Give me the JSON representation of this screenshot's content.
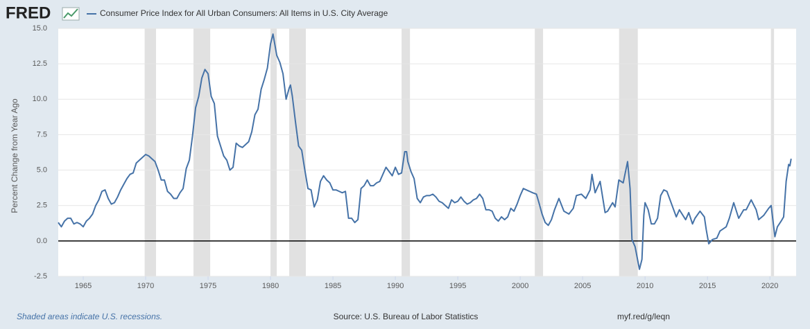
{
  "logo": "FRED",
  "footer": {
    "note": "Shaded areas indicate U.S. recessions.",
    "source": "Source: U.S. Bureau of Labor Statistics",
    "link": "myf.red/g/leqn"
  },
  "chart_data": {
    "type": "line",
    "y_label": "Percent Change from Year Ago",
    "x": [
      1963.0,
      1963.25,
      1963.5,
      1963.75,
      1964.0,
      1964.25,
      1964.5,
      1964.75,
      1965.0,
      1965.25,
      1965.5,
      1965.75,
      1966.0,
      1966.25,
      1966.5,
      1966.75,
      1967.0,
      1967.25,
      1967.5,
      1967.75,
      1968.0,
      1968.25,
      1968.5,
      1968.75,
      1969.0,
      1969.25,
      1969.5,
      1969.75,
      1970.0,
      1970.25,
      1970.5,
      1970.75,
      1971.0,
      1971.25,
      1971.5,
      1971.75,
      1972.0,
      1972.25,
      1972.5,
      1972.75,
      1973.0,
      1973.25,
      1973.5,
      1973.75,
      1974.0,
      1974.25,
      1974.5,
      1974.75,
      1975.0,
      1975.25,
      1975.5,
      1975.75,
      1976.0,
      1976.25,
      1976.5,
      1976.75,
      1977.0,
      1977.25,
      1977.5,
      1977.75,
      1978.0,
      1978.25,
      1978.5,
      1978.75,
      1979.0,
      1979.25,
      1979.5,
      1979.75,
      1980.0,
      1980.2,
      1980.5,
      1980.75,
      1981.0,
      1981.25,
      1981.5,
      1981.6,
      1981.75,
      1982.0,
      1982.25,
      1982.5,
      1982.75,
      1983.0,
      1983.25,
      1983.5,
      1983.75,
      1984.0,
      1984.25,
      1984.5,
      1984.75,
      1985.0,
      1985.25,
      1985.5,
      1985.75,
      1986.0,
      1986.25,
      1986.5,
      1986.75,
      1987.0,
      1987.25,
      1987.5,
      1987.75,
      1988.0,
      1988.25,
      1988.5,
      1988.75,
      1989.0,
      1989.25,
      1989.5,
      1989.75,
      1990.0,
      1990.25,
      1990.5,
      1990.75,
      1990.9,
      1991.0,
      1991.25,
      1991.5,
      1991.75,
      1992.0,
      1992.25,
      1992.5,
      1992.75,
      1993.0,
      1993.25,
      1993.5,
      1993.75,
      1994.0,
      1994.25,
      1994.5,
      1994.75,
      1995.0,
      1995.25,
      1995.5,
      1995.75,
      1996.0,
      1996.25,
      1996.5,
      1996.75,
      1997.0,
      1997.25,
      1997.5,
      1997.75,
      1998.0,
      1998.25,
      1998.5,
      1998.75,
      1999.0,
      1999.25,
      1999.5,
      1999.75,
      2000.0,
      2000.25,
      2000.75,
      2001.0,
      2001.3,
      2001.5,
      2001.75,
      2002.0,
      2002.25,
      2002.5,
      2002.75,
      2003.1,
      2003.5,
      2003.9,
      2004.25,
      2004.5,
      2004.9,
      2005.25,
      2005.6,
      2005.75,
      2006.0,
      2006.4,
      2006.8,
      2007.0,
      2007.4,
      2007.6,
      2007.9,
      2008.25,
      2008.6,
      2008.8,
      2008.95,
      2009.2,
      2009.55,
      2009.75,
      2009.9,
      2010.0,
      2010.25,
      2010.5,
      2010.75,
      2011.0,
      2011.25,
      2011.5,
      2011.75,
      2012.0,
      2012.5,
      2012.75,
      2013.25,
      2013.5,
      2013.8,
      2014.0,
      2014.4,
      2014.75,
      2014.9,
      2015.1,
      2015.4,
      2015.75,
      2016.0,
      2016.5,
      2016.75,
      2017.1,
      2017.5,
      2017.9,
      2018.1,
      2018.5,
      2018.9,
      2019.1,
      2019.5,
      2019.9,
      2020.1,
      2020.4,
      2020.6,
      2020.9,
      2021.1,
      2021.3,
      2021.5,
      2021.6,
      2021.7
    ],
    "series": [
      {
        "name": "Consumer Price Index for All Urban Consumers: All Items in U.S. City Average",
        "color": "#4572a7",
        "values": [
          1.3,
          1.0,
          1.4,
          1.6,
          1.6,
          1.2,
          1.3,
          1.2,
          1.0,
          1.4,
          1.6,
          1.9,
          2.5,
          2.9,
          3.5,
          3.6,
          3.0,
          2.6,
          2.7,
          3.1,
          3.6,
          4.0,
          4.4,
          4.7,
          4.8,
          5.5,
          5.7,
          5.9,
          6.1,
          6.0,
          5.8,
          5.6,
          5.0,
          4.3,
          4.3,
          3.5,
          3.3,
          3.0,
          3.0,
          3.4,
          3.7,
          5.1,
          5.7,
          7.4,
          9.4,
          10.2,
          11.5,
          12.1,
          11.8,
          10.2,
          9.7,
          7.4,
          6.7,
          6.0,
          5.7,
          5.0,
          5.2,
          6.9,
          6.7,
          6.6,
          6.8,
          7.0,
          7.7,
          8.9,
          9.3,
          10.7,
          11.4,
          12.2,
          13.9,
          14.6,
          13.1,
          12.6,
          11.8,
          10.0,
          10.8,
          11.0,
          10.2,
          8.4,
          6.7,
          6.4,
          5.0,
          3.7,
          3.6,
          2.4,
          2.9,
          4.2,
          4.6,
          4.3,
          4.1,
          3.6,
          3.6,
          3.5,
          3.4,
          3.5,
          1.6,
          1.6,
          1.3,
          1.5,
          3.7,
          3.9,
          4.3,
          3.9,
          3.9,
          4.1,
          4.2,
          4.7,
          5.2,
          4.9,
          4.6,
          5.2,
          4.7,
          4.8,
          6.3,
          6.3,
          5.6,
          4.9,
          4.4,
          3.0,
          2.7,
          3.1,
          3.2,
          3.2,
          3.3,
          3.1,
          2.8,
          2.7,
          2.5,
          2.3,
          2.9,
          2.7,
          2.8,
          3.1,
          2.8,
          2.6,
          2.7,
          2.9,
          3.0,
          3.3,
          3.0,
          2.2,
          2.2,
          2.1,
          1.6,
          1.4,
          1.7,
          1.5,
          1.7,
          2.3,
          2.1,
          2.6,
          3.2,
          3.7,
          3.5,
          3.4,
          3.3,
          2.7,
          1.9,
          1.3,
          1.1,
          1.5,
          2.2,
          3.0,
          2.1,
          1.9,
          2.3,
          3.2,
          3.3,
          3.0,
          3.6,
          4.7,
          3.4,
          4.2,
          2.0,
          2.1,
          2.7,
          2.4,
          4.3,
          4.1,
          5.6,
          3.7,
          0.1,
          -0.4,
          -2.0,
          -1.3,
          1.8,
          2.7,
          2.2,
          1.2,
          1.2,
          1.6,
          3.2,
          3.6,
          3.5,
          2.9,
          1.7,
          2.2,
          1.5,
          2.0,
          1.2,
          1.6,
          2.1,
          1.7,
          0.8,
          -0.2,
          0.1,
          0.2,
          0.7,
          1.0,
          1.6,
          2.7,
          1.6,
          2.2,
          2.2,
          2.9,
          2.2,
          1.5,
          1.8,
          2.3,
          2.5,
          0.3,
          1.0,
          1.4,
          1.7,
          4.2,
          5.4,
          5.3,
          5.8
        ]
      }
    ],
    "recessions": [
      [
        1969.92,
        1970.83
      ],
      [
        1973.83,
        1975.17
      ],
      [
        1980.0,
        1980.5
      ],
      [
        1981.5,
        1982.83
      ],
      [
        1990.5,
        1991.17
      ],
      [
        2001.17,
        2001.83
      ],
      [
        2007.92,
        2009.42
      ],
      [
        2020.08,
        2020.33
      ]
    ],
    "xlim": [
      1963,
      2022.1
    ],
    "xticks": [
      1965,
      1970,
      1975,
      1980,
      1985,
      1990,
      1995,
      2000,
      2005,
      2010,
      2015,
      2020
    ],
    "ylim": [
      -2.5,
      15
    ],
    "yticks": [
      -2.5,
      {
        "value": 0,
        "label": "0.0"
      },
      2.5,
      {
        "value": 5,
        "label": "5.0"
      },
      7.5,
      {
        "value": 10,
        "label": "10.0"
      },
      12.5,
      {
        "value": 15,
        "label": "15.0"
      }
    ],
    "grid": true,
    "zero_line": true
  }
}
